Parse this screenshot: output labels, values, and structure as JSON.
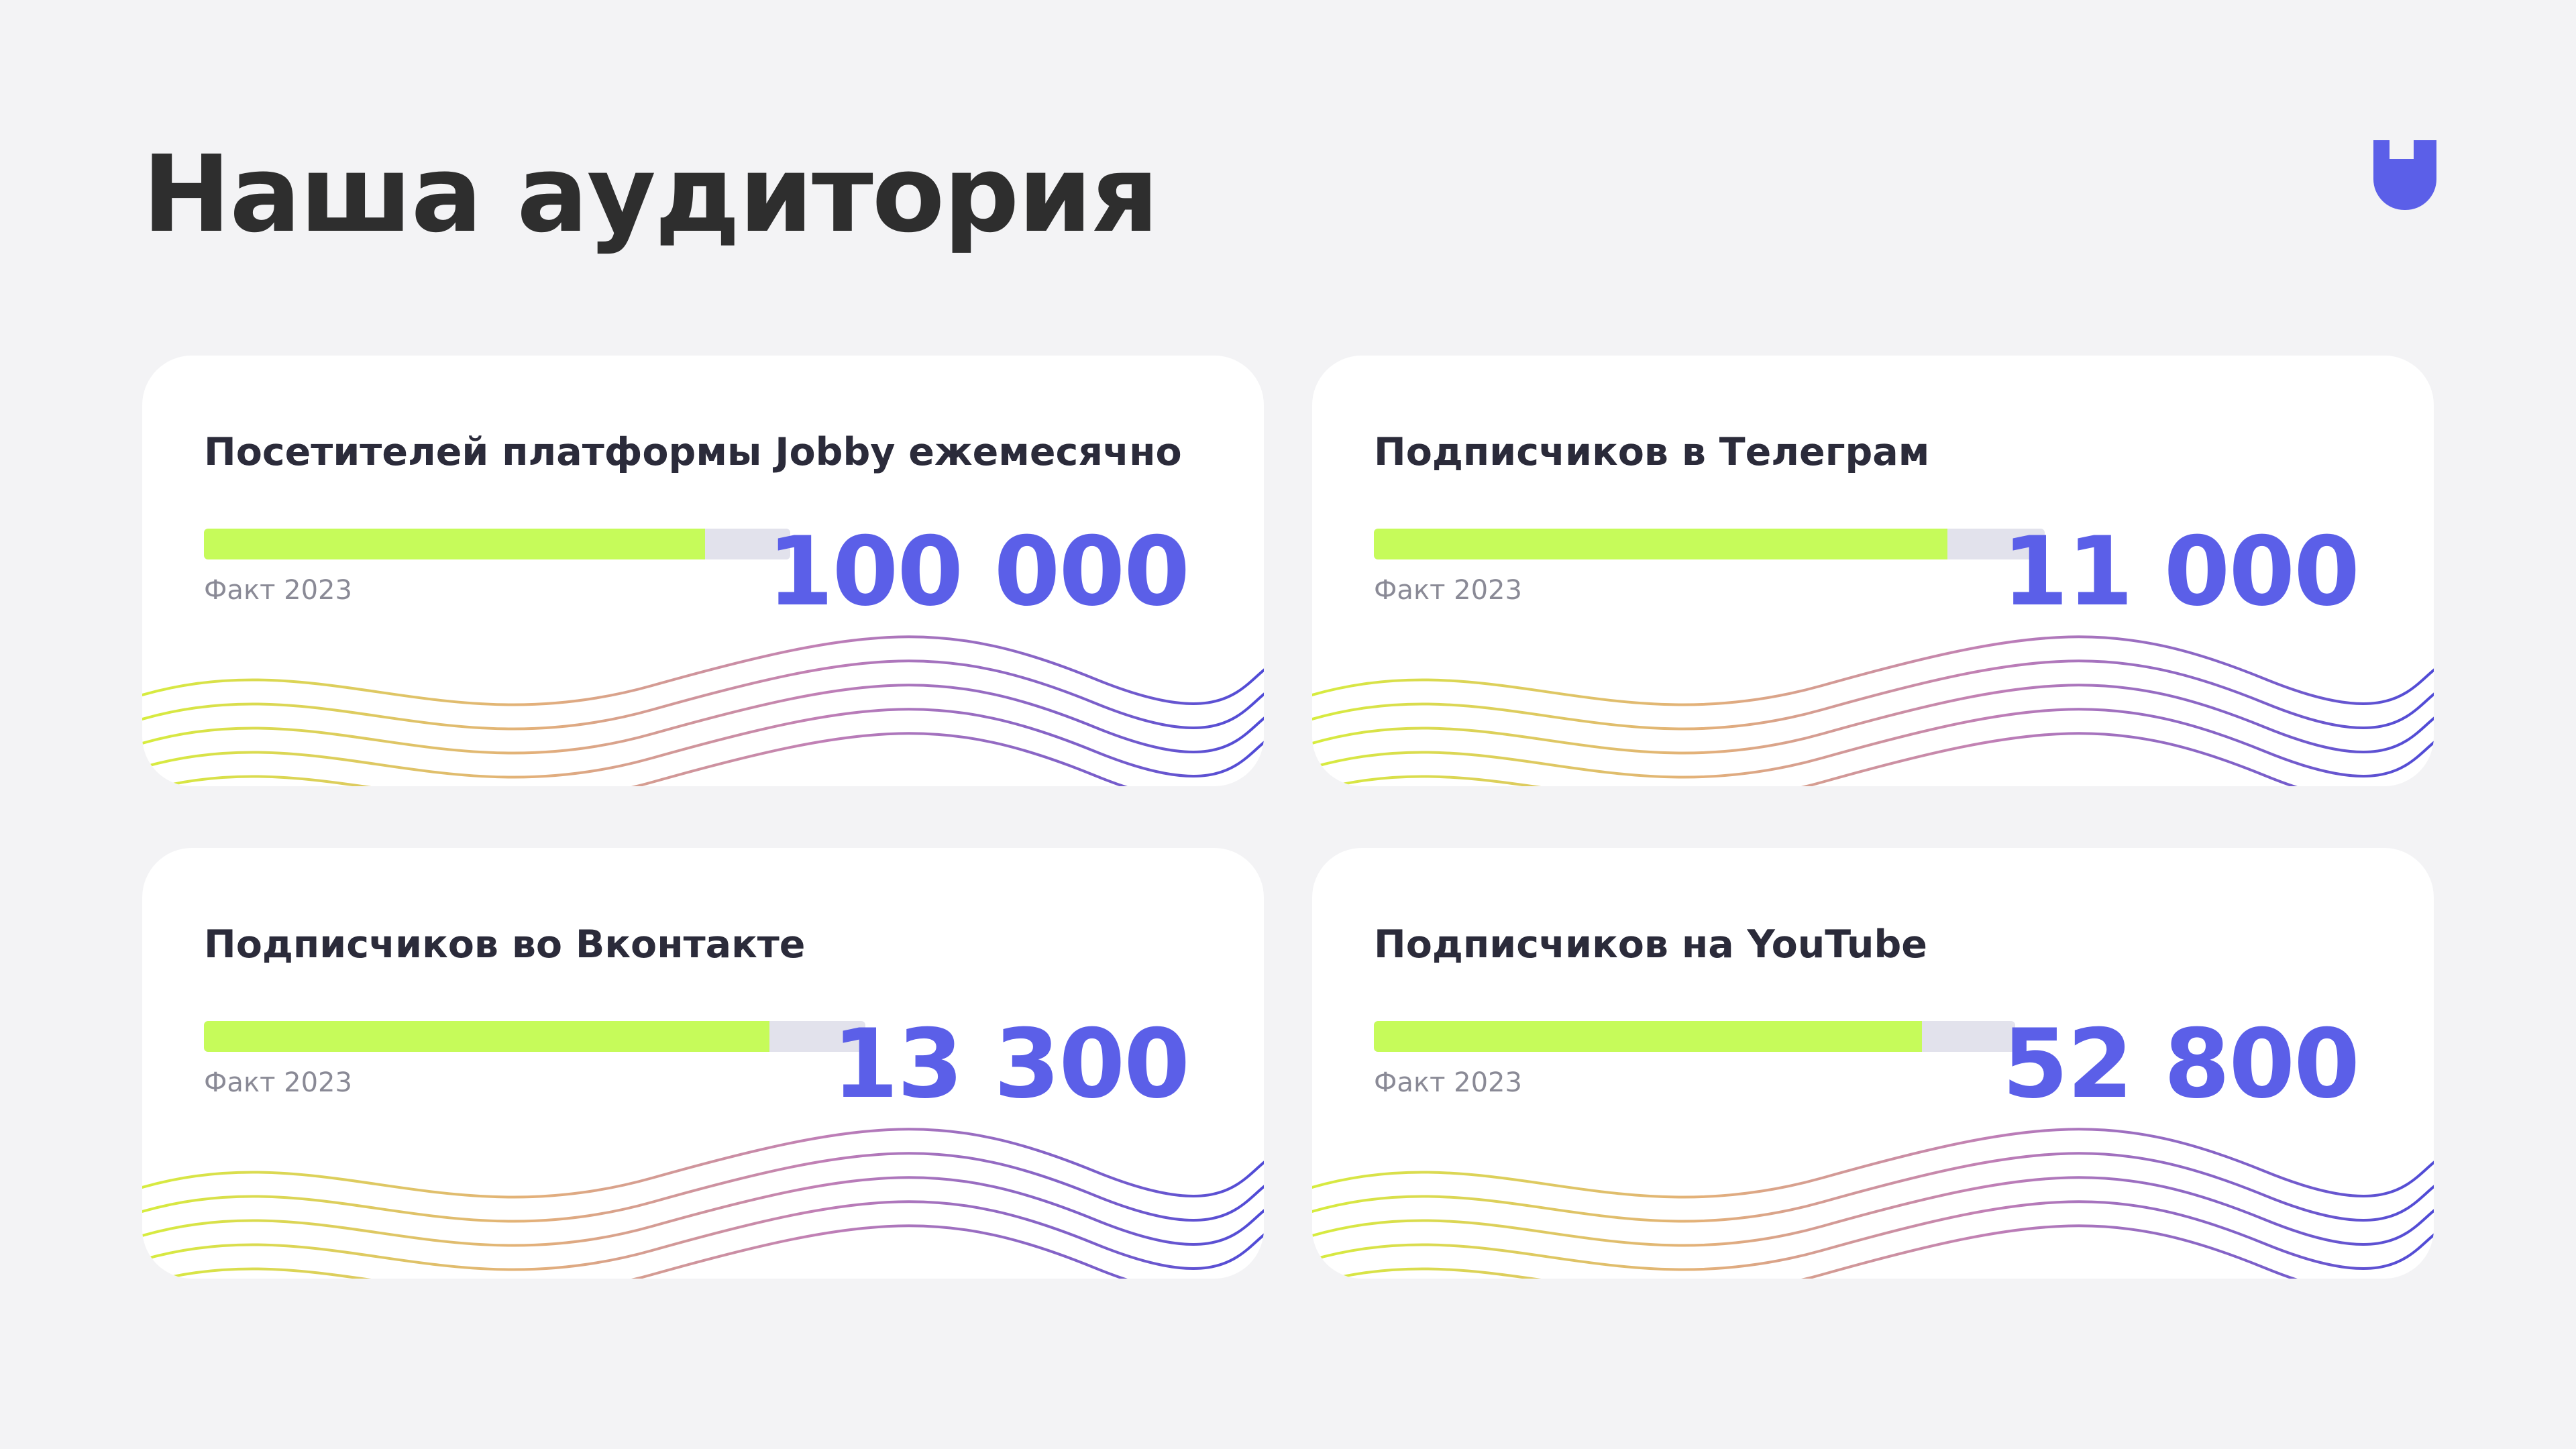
{
  "page": {
    "title": "Наша аудитория"
  },
  "logo": {
    "icon": "jobby-logo-icon",
    "color": "#5b5fe8"
  },
  "colors": {
    "accent": "#5b5fe8",
    "progress_fill": "#c6fb5a",
    "progress_track": "#e2e2ec",
    "background": "#f3f3f5",
    "card": "#ffffff"
  },
  "cards": [
    {
      "title": "Посетителей платформы Jobby ежемесячно",
      "value": "100 000",
      "fact_label": "Факт 2023",
      "progress_fraction": 0.855
    },
    {
      "title": "Подписчиков в Телеграм",
      "value": "11 000",
      "fact_label": "Факт 2023",
      "progress_fraction": 0.855
    },
    {
      "title": "Подписчиков во Вконтакте",
      "value": "13 300",
      "fact_label": "Факт 2023",
      "progress_fraction": 0.855
    },
    {
      "title": "Подписчиков на YouTube",
      "value": "52 800",
      "fact_label": "Факт 2023",
      "progress_fraction": 0.855
    }
  ]
}
